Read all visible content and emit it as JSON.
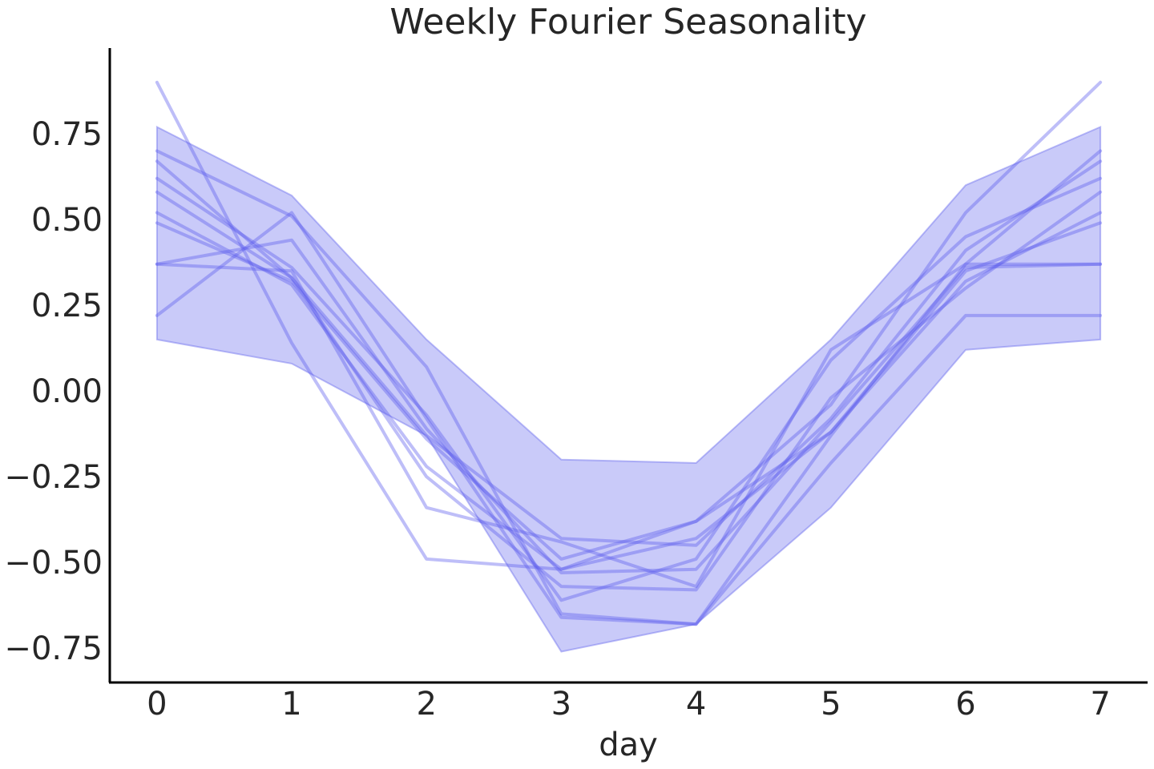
{
  "chart_data": {
    "type": "line",
    "title": "Weekly Fourier Seasonality",
    "xlabel": "day",
    "ylabel": "",
    "x": [
      0,
      1,
      2,
      3,
      4,
      5,
      6,
      7
    ],
    "xlim": [
      -0.35,
      7.35
    ],
    "ylim": [
      -0.85,
      1.0
    ],
    "x_ticks": [
      0,
      1,
      2,
      3,
      4,
      5,
      6,
      7
    ],
    "x_tick_labels": [
      "0",
      "1",
      "2",
      "3",
      "4",
      "5",
      "6",
      "7"
    ],
    "y_ticks": [
      0.75,
      0.5,
      0.25,
      0.0,
      -0.25,
      -0.5,
      -0.75
    ],
    "y_tick_labels": [
      "0.75",
      "0.50",
      "0.25",
      "0.00",
      "−0.25",
      "−0.50",
      "−0.75"
    ],
    "grid": false,
    "legend": "none",
    "band": {
      "upper": [
        0.77,
        0.57,
        0.15,
        -0.2,
        -0.21,
        0.15,
        0.6,
        0.77
      ],
      "lower": [
        0.15,
        0.08,
        -0.13,
        -0.76,
        -0.68,
        -0.34,
        0.12,
        0.15
      ]
    },
    "series": [
      {
        "values": [
          0.9,
          0.14,
          -0.49,
          -0.52,
          -0.38,
          -0.04,
          0.52,
          0.9
        ]
      },
      {
        "values": [
          0.7,
          0.51,
          0.07,
          -0.65,
          -0.68,
          -0.13,
          0.37,
          0.7
        ]
      },
      {
        "values": [
          0.67,
          0.33,
          -0.13,
          -0.43,
          -0.45,
          -0.08,
          0.41,
          0.67
        ]
      },
      {
        "values": [
          0.62,
          0.36,
          -0.07,
          -0.61,
          -0.49,
          0.09,
          0.45,
          0.62
        ]
      },
      {
        "values": [
          0.58,
          0.33,
          -0.25,
          -0.57,
          -0.58,
          -0.02,
          0.3,
          0.58
        ]
      },
      {
        "values": [
          0.52,
          0.31,
          -0.22,
          -0.52,
          -0.43,
          -0.12,
          0.32,
          0.52
        ]
      },
      {
        "values": [
          0.49,
          0.32,
          -0.14,
          -0.49,
          -0.38,
          -0.12,
          0.35,
          0.49
        ]
      },
      {
        "values": [
          0.37,
          0.35,
          -0.34,
          -0.44,
          -0.57,
          0.12,
          0.37,
          0.37
        ]
      },
      {
        "values": [
          0.22,
          0.52,
          -0.08,
          -0.66,
          -0.68,
          -0.21,
          0.22,
          0.22
        ]
      },
      {
        "values": [
          0.37,
          0.44,
          -0.11,
          -0.53,
          -0.52,
          -0.09,
          0.36,
          0.37
        ]
      }
    ],
    "colors": {
      "line": "#5d5dee",
      "band": "#6a6cee",
      "axis": "#000000",
      "text": "#262626"
    }
  }
}
